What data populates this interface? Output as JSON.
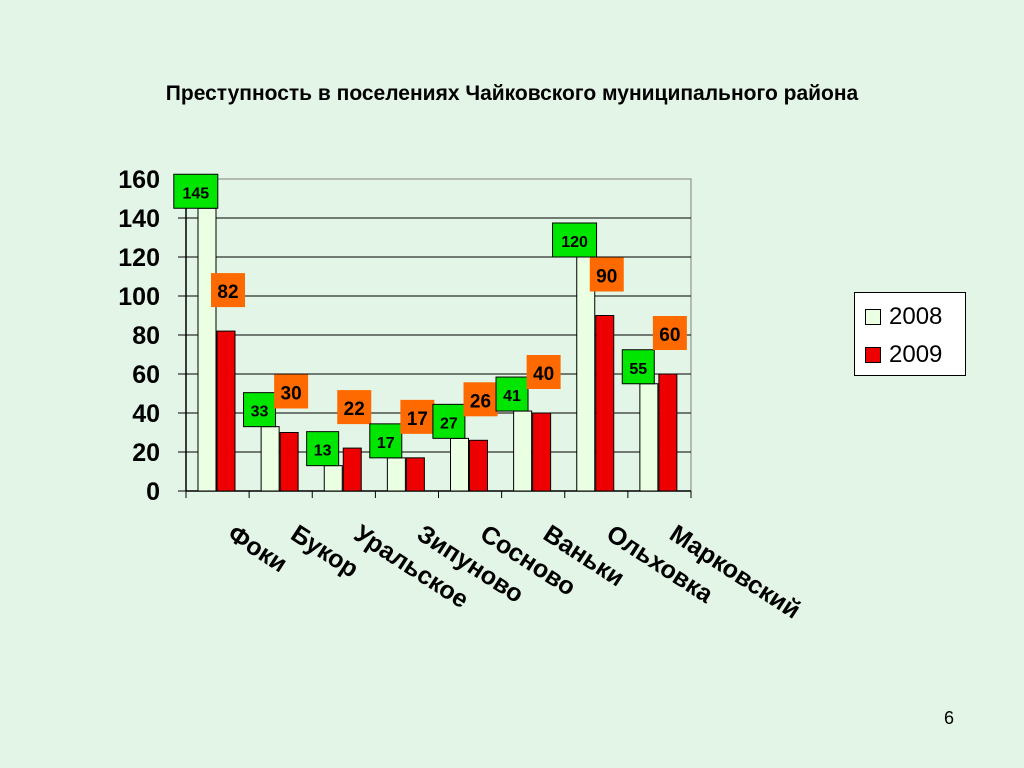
{
  "slide": {
    "title": "Преступность в поселениях Чайковского муниципального района",
    "page_number": "6"
  },
  "colors": {
    "s2008": "#ebffe3",
    "s2009": "#ee0000",
    "label2008": "#00e600",
    "label2009": "#ff6a00"
  },
  "chart_data": {
    "type": "bar",
    "title": "Преступность в поселениях Чайковского муниципального района",
    "categories": [
      "Фоки",
      "Букор",
      "Уральское",
      "Зипуново",
      "Сосново",
      "Ваньки",
      "Ольховка",
      "Марковский"
    ],
    "series": [
      {
        "name": "2008",
        "values": [
          145,
          33,
          13,
          17,
          27,
          41,
          120,
          55
        ]
      },
      {
        "name": "2009",
        "values": [
          82,
          30,
          22,
          17,
          26,
          40,
          90,
          60
        ]
      }
    ],
    "yticks": [
      0,
      20,
      40,
      60,
      80,
      100,
      120,
      140,
      160
    ],
    "ylim": [
      0,
      160
    ],
    "xlabel": "",
    "ylabel": "",
    "grid": true,
    "legend": "right"
  }
}
